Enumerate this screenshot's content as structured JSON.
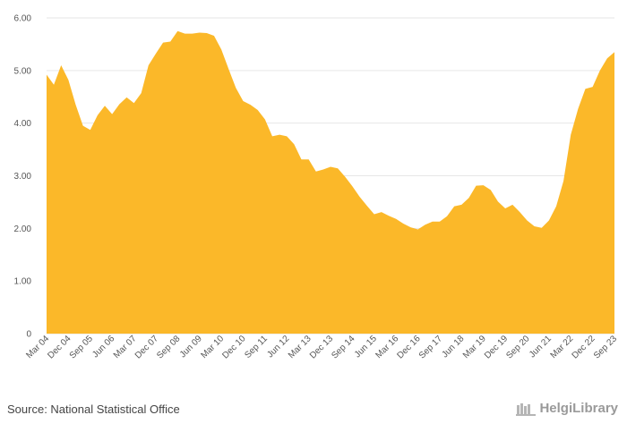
{
  "chart_data": {
    "type": "area",
    "title": "",
    "xlabel": "",
    "ylabel": "",
    "ylim": [
      0,
      6
    ],
    "yticks": [
      "0",
      "1.00",
      "2.00",
      "3.00",
      "4.00",
      "5.00",
      "6.00"
    ],
    "xticks": [
      "Mar 04",
      "Dec 04",
      "Sep 05",
      "Jun 06",
      "Mar 07",
      "Dec 07",
      "Sep 08",
      "Jun 09",
      "Mar 10",
      "Dec 10",
      "Sep 11",
      "Jun 12",
      "Mar 13",
      "Dec 13",
      "Sep 14",
      "Jun 15",
      "Mar 16",
      "Dec 16",
      "Sep 17",
      "Jun 18",
      "Mar 19",
      "Dec 19",
      "Sep 20",
      "Jun 21",
      "Mar 22",
      "Dec 22",
      "Sep 23"
    ],
    "grid": true,
    "legend": "none",
    "color": "#FBB829",
    "x": [
      "Mar 04",
      "Jun 04",
      "Sep 04",
      "Dec 04",
      "Mar 05",
      "Jun 05",
      "Sep 05",
      "Dec 05",
      "Mar 06",
      "Jun 06",
      "Sep 06",
      "Dec 06",
      "Mar 07",
      "Jun 07",
      "Sep 07",
      "Dec 07",
      "Mar 08",
      "Jun 08",
      "Sep 08",
      "Dec 08",
      "Mar 09",
      "Jun 09",
      "Sep 09",
      "Dec 09",
      "Mar 10",
      "Jun 10",
      "Sep 10",
      "Dec 10",
      "Mar 11",
      "Jun 11",
      "Sep 11",
      "Dec 11",
      "Mar 12",
      "Jun 12",
      "Sep 12",
      "Dec 12",
      "Mar 13",
      "Jun 13",
      "Sep 13",
      "Dec 13",
      "Mar 14",
      "Jun 14",
      "Sep 14",
      "Dec 14",
      "Mar 15",
      "Jun 15",
      "Sep 15",
      "Dec 15",
      "Mar 16",
      "Jun 16",
      "Sep 16",
      "Dec 16",
      "Mar 17",
      "Jun 17",
      "Sep 17",
      "Dec 17",
      "Mar 18",
      "Jun 18",
      "Sep 18",
      "Dec 18",
      "Mar 19",
      "Jun 19",
      "Sep 19",
      "Dec 19",
      "Mar 20",
      "Jun 20",
      "Sep 20",
      "Dec 20",
      "Mar 21",
      "Jun 21",
      "Sep 21",
      "Dec 21",
      "Mar 22",
      "Jun 22",
      "Sep 22",
      "Dec 22",
      "Mar 23",
      "Jun 23",
      "Sep 23"
    ],
    "values": [
      4.92,
      4.73,
      5.1,
      4.82,
      4.35,
      3.95,
      3.87,
      4.15,
      4.33,
      4.17,
      4.36,
      4.49,
      4.38,
      4.57,
      5.1,
      5.32,
      5.53,
      5.55,
      5.75,
      5.7,
      5.7,
      5.72,
      5.71,
      5.66,
      5.4,
      5.03,
      4.67,
      4.42,
      4.35,
      4.25,
      4.07,
      3.75,
      3.78,
      3.75,
      3.6,
      3.31,
      3.31,
      3.08,
      3.12,
      3.17,
      3.14,
      2.98,
      2.8,
      2.6,
      2.43,
      2.27,
      2.31,
      2.24,
      2.18,
      2.09,
      2.02,
      1.98,
      2.07,
      2.13,
      2.13,
      2.23,
      2.42,
      2.45,
      2.58,
      2.81,
      2.82,
      2.73,
      2.51,
      2.38,
      2.45,
      2.31,
      2.15,
      2.04,
      2.01,
      2.15,
      2.42,
      2.9,
      3.78,
      4.27,
      4.65,
      4.69,
      5.0,
      5.23,
      5.35
    ]
  },
  "footer": {
    "source": "Source: National Statistical Office",
    "brand": "HelgiLibrary"
  }
}
